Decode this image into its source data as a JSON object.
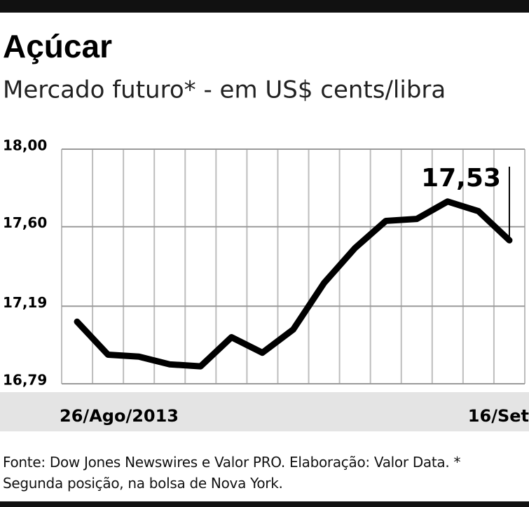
{
  "chart_data": {
    "type": "line",
    "title": "Açúcar",
    "subtitle": "Mercado futuro* - em US$ cents/libra",
    "categories": [
      "26/Ago/2013",
      null,
      null,
      null,
      null,
      null,
      null,
      null,
      null,
      null,
      null,
      null,
      null,
      null,
      "16/Set"
    ],
    "series": [
      {
        "color": "#000000",
        "values": [
          17.11,
          16.94,
          16.93,
          16.89,
          16.88,
          17.03,
          16.95,
          17.07,
          17.31,
          17.49,
          17.63,
          17.64,
          17.73,
          17.68,
          17.53
        ],
        "value_labels": [
          null,
          null,
          null,
          null,
          null,
          null,
          null,
          null,
          null,
          null,
          null,
          null,
          null,
          null,
          "17,53"
        ]
      }
    ],
    "ylim": [
      16.79,
      18.0
    ],
    "yticks": [
      {
        "value": 16.79,
        "label": "16,79"
      },
      {
        "value": 17.19,
        "label": "17,19"
      },
      {
        "value": 17.6,
        "label": "17,60"
      },
      {
        "value": 18.0,
        "label": "18,00"
      }
    ],
    "grid": true,
    "source": "Fonte: Dow Jones Newswires e Valor PRO. Elaboração: Valor Data. * Segunda posição, na bolsa de Nova York."
  }
}
